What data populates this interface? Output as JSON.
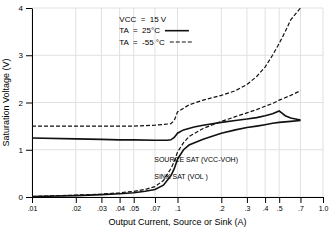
{
  "chart_data": {
    "type": "line",
    "xlabel": "Output Current, Source or Sink (A)",
    "ylabel": "Saturation Voltage (V)",
    "log": "x",
    "grid": true,
    "xlim": [
      0.01,
      1.0
    ],
    "ylim": [
      0,
      4
    ],
    "xticks": [
      {
        "value": 0.01,
        "label": ".01"
      },
      {
        "value": 0.02,
        "label": ".02"
      },
      {
        "value": 0.03,
        "label": ".03"
      },
      {
        "value": 0.04,
        "label": ".04"
      },
      {
        "value": 0.05,
        "label": ".05"
      },
      {
        "value": 0.07,
        "label": ".07"
      },
      {
        "value": 0.1,
        "label": ".1"
      },
      {
        "value": 0.2,
        "label": ".2"
      },
      {
        "value": 0.3,
        "label": ".3"
      },
      {
        "value": 0.4,
        "label": ".4"
      },
      {
        "value": 0.5,
        "label": ".5"
      },
      {
        "value": 0.7,
        "label": ".7"
      },
      {
        "value": 1.0,
        "label": "1.0"
      }
    ],
    "yticks": [
      0,
      1,
      2,
      3,
      4
    ],
    "annotations": [
      {
        "text": "VCC  =  15 V"
      },
      {
        "text": "TA  =  25°C",
        "line_style": "solid"
      },
      {
        "text": "TA  =  -55 °C",
        "line_style": "dashed"
      },
      {
        "text": "SOURCE SAT (VCC-VOH)"
      },
      {
        "text": "SINK SAT (VOL )"
      }
    ],
    "series": [
      {
        "color": "#111111",
        "line_style": "solid",
        "x": [
          0.01,
          0.02,
          0.03,
          0.04,
          0.05,
          0.07,
          0.085,
          0.09,
          0.095,
          0.1,
          0.11,
          0.13,
          0.15,
          0.2,
          0.25,
          0.3,
          0.35,
          0.4,
          0.45,
          0.5,
          0.52,
          0.55,
          0.6,
          0.7
        ],
        "values": [
          1.25,
          1.23,
          1.22,
          1.21,
          1.21,
          1.2,
          1.2,
          1.21,
          1.26,
          1.35,
          1.42,
          1.48,
          1.52,
          1.58,
          1.62,
          1.65,
          1.68,
          1.72,
          1.76,
          1.82,
          1.78,
          1.72,
          1.67,
          1.63
        ]
      },
      {
        "color": "#111111",
        "line_style": "dashed",
        "x": [
          0.01,
          0.02,
          0.03,
          0.04,
          0.05,
          0.07,
          0.09,
          0.095,
          0.1,
          0.12,
          0.15,
          0.2,
          0.25,
          0.3,
          0.35,
          0.4,
          0.45,
          0.5,
          0.55,
          0.6,
          0.7
        ],
        "values": [
          1.5,
          1.5,
          1.5,
          1.5,
          1.5,
          1.52,
          1.55,
          1.62,
          1.8,
          1.95,
          2.05,
          2.15,
          2.25,
          2.38,
          2.55,
          2.75,
          3.0,
          3.25,
          3.5,
          3.75,
          4.0
        ]
      },
      {
        "color": "#111111",
        "line_style": "solid",
        "x": [
          0.01,
          0.02,
          0.03,
          0.04,
          0.05,
          0.06,
          0.07,
          0.08,
          0.09,
          0.095,
          0.1,
          0.11,
          0.12,
          0.15,
          0.2,
          0.25,
          0.3,
          0.35,
          0.4,
          0.45,
          0.5,
          0.6,
          0.7
        ],
        "values": [
          0.01,
          0.03,
          0.05,
          0.07,
          0.09,
          0.12,
          0.16,
          0.25,
          0.45,
          0.6,
          0.8,
          1.0,
          1.1,
          1.22,
          1.35,
          1.42,
          1.47,
          1.5,
          1.53,
          1.56,
          1.58,
          1.6,
          1.62
        ]
      },
      {
        "color": "#111111",
        "line_style": "dashed",
        "x": [
          0.01,
          0.02,
          0.03,
          0.04,
          0.05,
          0.06,
          0.07,
          0.08,
          0.09,
          0.095,
          0.1,
          0.11,
          0.12,
          0.15,
          0.2,
          0.25,
          0.3,
          0.35,
          0.4,
          0.45,
          0.5,
          0.6,
          0.7
        ],
        "values": [
          0.01,
          0.04,
          0.06,
          0.09,
          0.12,
          0.16,
          0.22,
          0.35,
          0.6,
          0.75,
          0.95,
          1.15,
          1.28,
          1.45,
          1.6,
          1.7,
          1.78,
          1.85,
          1.92,
          1.98,
          2.05,
          2.15,
          2.25
        ]
      }
    ]
  }
}
